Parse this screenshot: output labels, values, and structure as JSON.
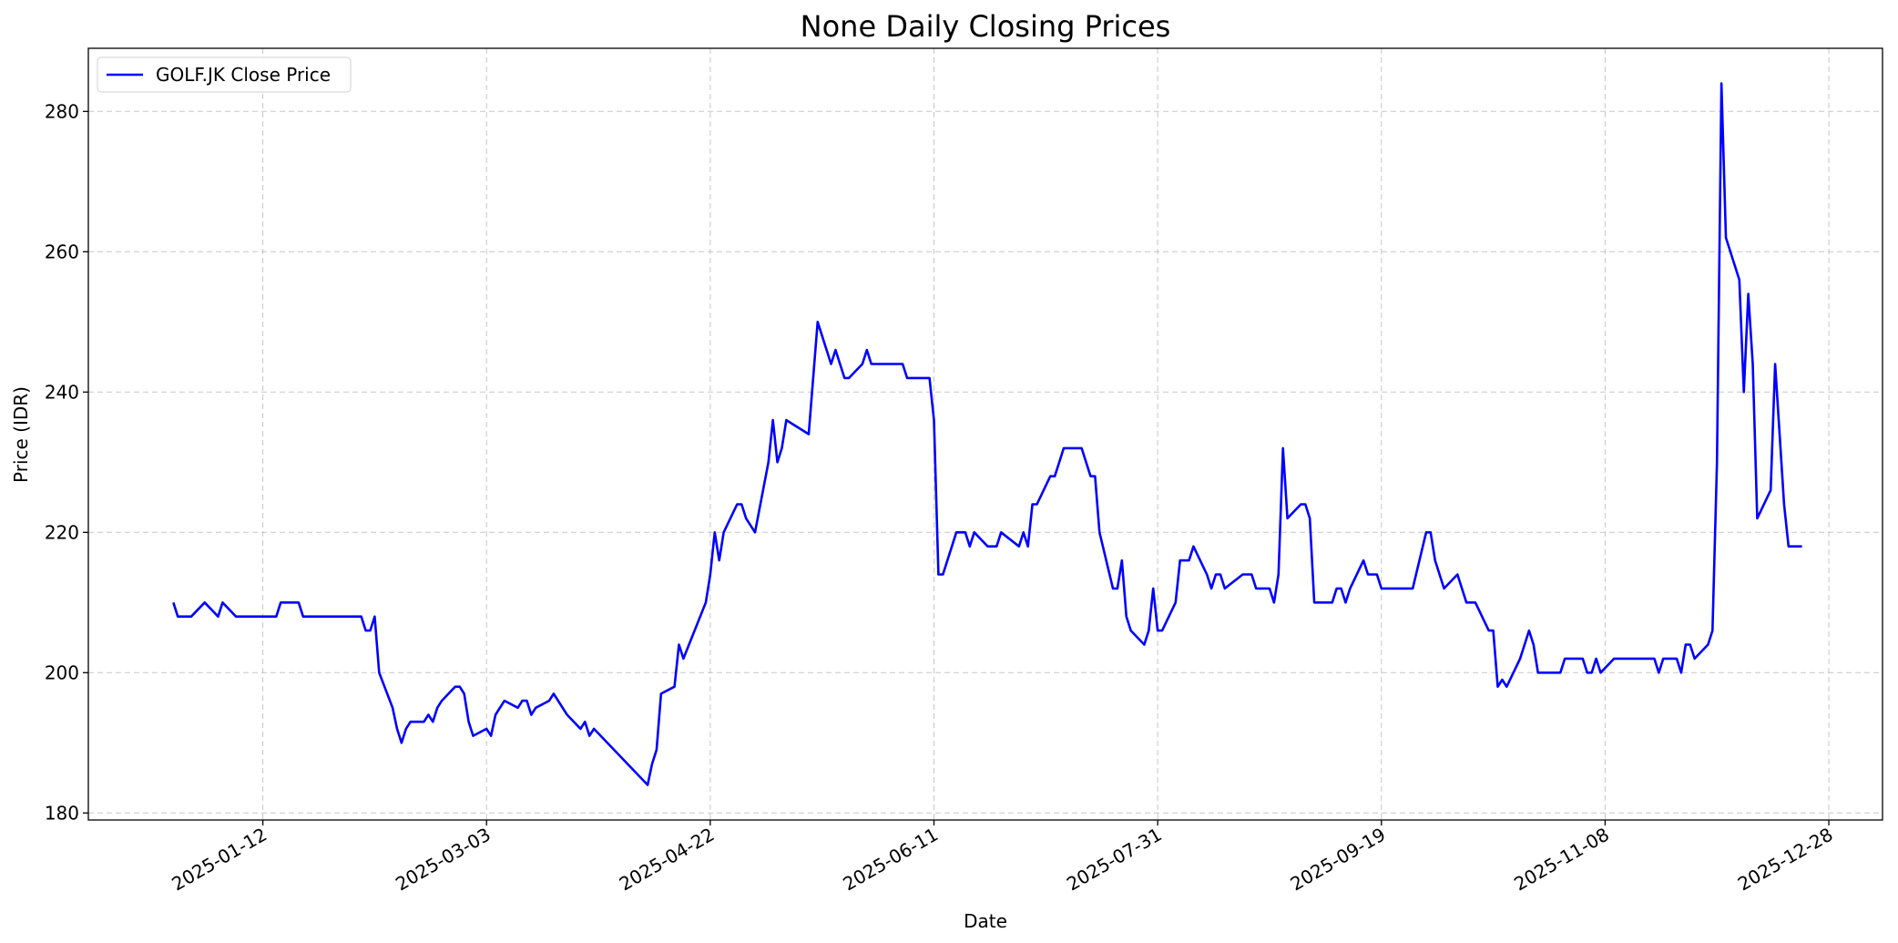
{
  "chart_data": {
    "type": "line",
    "title": "None Daily Closing Prices",
    "xlabel": "Date",
    "ylabel": "Price (IDR)",
    "x": [
      "2024-12-23",
      "2024-12-24",
      "2024-12-27",
      "2024-12-30",
      "2025-01-02",
      "2025-01-03",
      "2025-01-06",
      "2025-01-15",
      "2025-01-16",
      "2025-01-20",
      "2025-01-21",
      "2025-02-03",
      "2025-02-04",
      "2025-02-05",
      "2025-02-06",
      "2025-02-07",
      "2025-02-10",
      "2025-02-11",
      "2025-02-12",
      "2025-02-13",
      "2025-02-14",
      "2025-02-17",
      "2025-02-18",
      "2025-02-19",
      "2025-02-20",
      "2025-02-21",
      "2025-02-24",
      "2025-02-25",
      "2025-02-26",
      "2025-02-27",
      "2025-02-28",
      "2025-03-03",
      "2025-03-04",
      "2025-03-05",
      "2025-03-07",
      "2025-03-10",
      "2025-03-11",
      "2025-03-12",
      "2025-03-13",
      "2025-03-14",
      "2025-03-17",
      "2025-03-18",
      "2025-03-21",
      "2025-03-24",
      "2025-03-25",
      "2025-03-26",
      "2025-03-27",
      "2025-04-08",
      "2025-04-09",
      "2025-04-10",
      "2025-04-11",
      "2025-04-14",
      "2025-04-15",
      "2025-04-16",
      "2025-04-21",
      "2025-04-22",
      "2025-04-23",
      "2025-04-24",
      "2025-04-25",
      "2025-04-28",
      "2025-04-29",
      "2025-04-30",
      "2025-05-02",
      "2025-05-05",
      "2025-05-06",
      "2025-05-07",
      "2025-05-08",
      "2025-05-09",
      "2025-05-14",
      "2025-05-16",
      "2025-05-19",
      "2025-05-20",
      "2025-05-22",
      "2025-05-23",
      "2025-05-26",
      "2025-05-27",
      "2025-05-28",
      "2025-06-04",
      "2025-06-05",
      "2025-06-10",
      "2025-06-11",
      "2025-06-12",
      "2025-06-13",
      "2025-06-16",
      "2025-06-18",
      "2025-06-19",
      "2025-06-20",
      "2025-06-23",
      "2025-06-25",
      "2025-06-26",
      "2025-06-30",
      "2025-07-01",
      "2025-07-02",
      "2025-07-03",
      "2025-07-04",
      "2025-07-07",
      "2025-07-08",
      "2025-07-10",
      "2025-07-14",
      "2025-07-16",
      "2025-07-17",
      "2025-07-18",
      "2025-07-21",
      "2025-07-22",
      "2025-07-23",
      "2025-07-24",
      "2025-07-25",
      "2025-07-28",
      "2025-07-29",
      "2025-07-30",
      "2025-07-31",
      "2025-08-01",
      "2025-08-04",
      "2025-08-05",
      "2025-08-07",
      "2025-08-08",
      "2025-08-11",
      "2025-08-12",
      "2025-08-13",
      "2025-08-14",
      "2025-08-15",
      "2025-08-19",
      "2025-08-21",
      "2025-08-22",
      "2025-08-25",
      "2025-08-26",
      "2025-08-27",
      "2025-08-28",
      "2025-08-29",
      "2025-09-01",
      "2025-09-02",
      "2025-09-03",
      "2025-09-04",
      "2025-09-08",
      "2025-09-09",
      "2025-09-10",
      "2025-09-11",
      "2025-09-12",
      "2025-09-15",
      "2025-09-16",
      "2025-09-18",
      "2025-09-19",
      "2025-09-26",
      "2025-09-29",
      "2025-09-30",
      "2025-10-01",
      "2025-10-03",
      "2025-10-06",
      "2025-10-08",
      "2025-10-10",
      "2025-10-13",
      "2025-10-14",
      "2025-10-15",
      "2025-10-16",
      "2025-10-17",
      "2025-10-20",
      "2025-10-22",
      "2025-10-23",
      "2025-10-24",
      "2025-10-29",
      "2025-10-30",
      "2025-11-03",
      "2025-11-04",
      "2025-11-05",
      "2025-11-06",
      "2025-11-07",
      "2025-11-10",
      "2025-11-19",
      "2025-11-20",
      "2025-11-21",
      "2025-11-24",
      "2025-11-25",
      "2025-11-26",
      "2025-11-27",
      "2025-11-28",
      "2025-12-01",
      "2025-12-02",
      "2025-12-03",
      "2025-12-04",
      "2025-12-05",
      "2025-12-08",
      "2025-12-09",
      "2025-12-10",
      "2025-12-11",
      "2025-12-12",
      "2025-12-15",
      "2025-12-16",
      "2025-12-17",
      "2025-12-18",
      "2025-12-19",
      "2025-12-22"
    ],
    "series": [
      {
        "name": "GOLF.JK Close Price",
        "color": "#0000ff",
        "values": [
          210,
          208,
          208,
          210,
          208,
          210,
          208,
          208,
          210,
          210,
          208,
          208,
          206,
          206,
          208,
          200,
          195,
          192,
          190,
          192,
          193,
          193,
          194,
          193,
          195,
          196,
          198,
          198,
          197,
          193,
          191,
          192,
          191,
          194,
          196,
          195,
          196,
          196,
          194,
          195,
          196,
          197,
          194,
          192,
          193,
          191,
          192,
          184,
          187,
          189,
          197,
          198,
          204,
          202,
          210,
          214,
          220,
          216,
          220,
          224,
          224,
          222,
          220,
          230,
          236,
          230,
          232,
          236,
          234,
          250,
          244,
          246,
          242,
          242,
          244,
          246,
          244,
          244,
          242,
          242,
          236,
          214,
          214,
          220,
          220,
          218,
          220,
          218,
          218,
          220,
          218,
          220,
          218,
          224,
          224,
          228,
          228,
          232,
          232,
          228,
          228,
          220,
          212,
          212,
          216,
          208,
          206,
          204,
          206,
          212,
          206,
          206,
          210,
          216,
          216,
          218,
          214,
          212,
          214,
          214,
          212,
          214,
          214,
          212,
          212,
          210,
          214,
          232,
          222,
          224,
          224,
          222,
          210,
          210,
          212,
          212,
          210,
          212,
          216,
          214,
          214,
          212,
          212,
          220,
          220,
          216,
          212,
          214,
          210,
          210,
          206,
          206,
          198,
          199,
          198,
          202,
          206,
          204,
          200,
          200,
          202,
          202,
          200,
          200,
          202,
          200,
          202,
          202,
          200,
          202,
          202,
          200,
          204,
          204,
          202,
          204,
          206,
          230,
          284,
          262,
          256,
          240,
          254,
          244,
          222,
          226,
          244,
          234,
          224,
          218,
          218
        ]
      }
    ],
    "xlim": [
      "2024-12-04",
      "2026-01-09"
    ],
    "xticks": [
      "2025-01-12",
      "2025-03-03",
      "2025-04-22",
      "2025-06-11",
      "2025-07-31",
      "2025-09-19",
      "2025-11-08",
      "2025-12-28"
    ],
    "ylim": [
      179,
      289
    ],
    "yticks": [
      180,
      200,
      220,
      240,
      260,
      280
    ],
    "grid": true,
    "legend": "upper left"
  }
}
